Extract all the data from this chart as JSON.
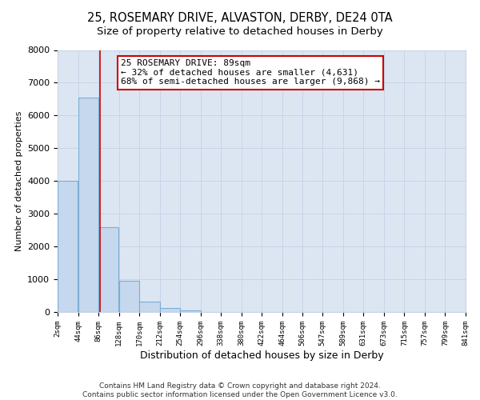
{
  "title": "25, ROSEMARY DRIVE, ALVASTON, DERBY, DE24 0TA",
  "subtitle": "Size of property relative to detached houses in Derby",
  "xlabel": "Distribution of detached houses by size in Derby",
  "ylabel": "Number of detached properties",
  "bin_edges": [
    2,
    44,
    86,
    128,
    170,
    212,
    254,
    296,
    338,
    380,
    422,
    464,
    506,
    547,
    589,
    631,
    673,
    715,
    757,
    799,
    841
  ],
  "bar_heights": [
    4000,
    6550,
    2600,
    950,
    310,
    120,
    50,
    0,
    0,
    0,
    0,
    0,
    0,
    0,
    0,
    0,
    0,
    0,
    0,
    0
  ],
  "bar_color": "#c5d8ed",
  "bar_edgecolor": "#7aafd4",
  "property_line_x": 89,
  "property_line_color": "#cc0000",
  "annotation_title": "25 ROSEMARY DRIVE: 89sqm",
  "annotation_line1": "← 32% of detached houses are smaller (4,631)",
  "annotation_line2": "68% of semi-detached houses are larger (9,868) →",
  "annotation_box_color": "#ffffff",
  "annotation_box_edgecolor": "#cc0000",
  "ylim": [
    0,
    8000
  ],
  "xlim": [
    2,
    841
  ],
  "tick_labels": [
    "2sqm",
    "44sqm",
    "86sqm",
    "128sqm",
    "170sqm",
    "212sqm",
    "254sqm",
    "296sqm",
    "338sqm",
    "380sqm",
    "422sqm",
    "464sqm",
    "506sqm",
    "547sqm",
    "589sqm",
    "631sqm",
    "673sqm",
    "715sqm",
    "757sqm",
    "799sqm",
    "841sqm"
  ],
  "grid_color": "#c8d4e8",
  "background_color": "#dce6f2",
  "footer_line1": "Contains HM Land Registry data © Crown copyright and database right 2024.",
  "footer_line2": "Contains public sector information licensed under the Open Government Licence v3.0.",
  "title_fontsize": 10.5,
  "annotation_fontsize": 8,
  "footer_fontsize": 6.5,
  "ylabel_fontsize": 8,
  "xlabel_fontsize": 9
}
